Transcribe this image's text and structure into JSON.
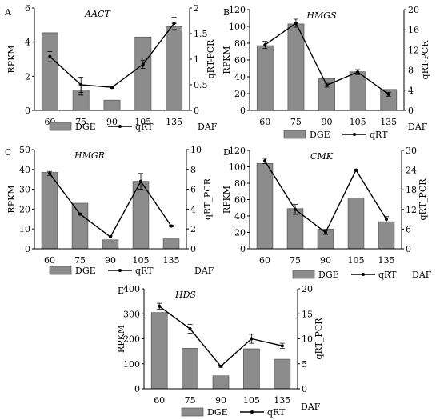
{
  "chart_data": [
    {
      "panel_label": "A",
      "type": "bar",
      "title": "AACT",
      "categories": [
        "60",
        "75",
        "90",
        "105",
        "135"
      ],
      "xlabel": "DAF",
      "ylabel": "RPKM",
      "y2label": "qRT-PCR",
      "ylim": [
        0,
        6
      ],
      "yticks": [
        "0",
        "2",
        "4",
        "6"
      ],
      "y2lim": [
        0,
        2
      ],
      "y2ticks": [
        "0",
        "0.5",
        "1",
        "1.5",
        "2"
      ],
      "series": [
        {
          "name": "DGE",
          "kind": "bar",
          "axis": "left",
          "values": [
            4.55,
            1.2,
            0.6,
            4.3,
            4.9
          ],
          "errors": [
            0,
            0.3,
            0,
            0,
            0.2
          ]
        },
        {
          "name": "qRT",
          "kind": "line",
          "axis": "right",
          "values": [
            1.05,
            0.5,
            0.45,
            0.9,
            1.7
          ],
          "errors": [
            0.1,
            0.15,
            0.02,
            0.08,
            0.12
          ]
        }
      ]
    },
    {
      "panel_label": "B",
      "type": "bar",
      "title": "HMGS",
      "categories": [
        "60",
        "75",
        "90",
        "105",
        "135"
      ],
      "xlabel": "DAF",
      "ylabel": "RPKM",
      "y2label": "qRT-PCR",
      "ylim": [
        0,
        120
      ],
      "yticks": [
        "0",
        "20",
        "40",
        "60",
        "80",
        "100",
        "120"
      ],
      "y2lim": [
        0,
        20
      ],
      "y2ticks": [
        "0",
        "4",
        "8",
        "12",
        "16",
        "20"
      ],
      "series": [
        {
          "name": "DGE",
          "kind": "bar",
          "axis": "left",
          "values": [
            77,
            103,
            38,
            46,
            25
          ],
          "errors": [
            0,
            0,
            0,
            0,
            0
          ]
        },
        {
          "name": "qRT",
          "kind": "line",
          "axis": "right",
          "values": [
            13,
            17.3,
            5,
            7.6,
            3.2
          ],
          "errors": [
            0.7,
            0.8,
            0.4,
            0.5,
            0.4
          ]
        }
      ]
    },
    {
      "panel_label": "C",
      "type": "bar",
      "title": "HMGR",
      "categories": [
        "60",
        "75",
        "90",
        "105",
        "135"
      ],
      "xlabel": "DAF",
      "ylabel": "RPKM",
      "y2label": "qRT_PCR",
      "ylim": [
        0,
        50
      ],
      "yticks": [
        "0",
        "10",
        "20",
        "30",
        "40",
        "50"
      ],
      "y2lim": [
        0,
        10
      ],
      "y2ticks": [
        "0",
        "2",
        "4",
        "6",
        "8",
        "10"
      ],
      "series": [
        {
          "name": "DGE",
          "kind": "bar",
          "axis": "left",
          "values": [
            38.5,
            23,
            4.5,
            34,
            5
          ],
          "errors": [
            0,
            0,
            0,
            0,
            0
          ]
        },
        {
          "name": "qRT",
          "kind": "line",
          "axis": "right",
          "values": [
            7.6,
            3.5,
            1.2,
            6.8,
            2.3
          ],
          "errors": [
            0.2,
            0.1,
            0.1,
            0.8,
            0.1
          ]
        }
      ]
    },
    {
      "panel_label": "D",
      "type": "bar",
      "title": "CMK",
      "categories": [
        "60",
        "75",
        "90",
        "105",
        "135"
      ],
      "xlabel": "DAF",
      "ylabel": "RPKM",
      "y2label": "qRT_PCR",
      "ylim": [
        0,
        120
      ],
      "yticks": [
        "0",
        "20",
        "40",
        "60",
        "80",
        "100",
        "120"
      ],
      "y2lim": [
        0,
        30
      ],
      "y2ticks": [
        "0",
        "6",
        "12",
        "18",
        "24",
        "30"
      ],
      "series": [
        {
          "name": "DGE",
          "kind": "bar",
          "axis": "left",
          "values": [
            104,
            49,
            24,
            62,
            33
          ],
          "errors": [
            0,
            0,
            0,
            0,
            0
          ]
        },
        {
          "name": "qRT",
          "kind": "line",
          "axis": "right",
          "values": [
            26.8,
            12,
            5,
            24,
            9
          ],
          "errors": [
            0.8,
            1.5,
            0.6,
            0.3,
            0.8
          ]
        }
      ]
    },
    {
      "panel_label": "E",
      "type": "bar",
      "title": "HDS",
      "categories": [
        "60",
        "75",
        "90",
        "105",
        "135"
      ],
      "xlabel": "DAF",
      "ylabel": "RPKM",
      "y2label": "qRT_PCR",
      "ylim": [
        0,
        400
      ],
      "yticks": [
        "0",
        "100",
        "200",
        "300",
        "400"
      ],
      "y2lim": [
        0,
        20
      ],
      "y2ticks": [
        "0",
        "5",
        "10",
        "15",
        "20"
      ],
      "series": [
        {
          "name": "DGE",
          "kind": "bar",
          "axis": "left",
          "values": [
            305,
            162,
            52,
            160,
            118
          ],
          "errors": [
            0,
            0,
            0,
            0,
            0
          ]
        },
        {
          "name": "qRT",
          "kind": "line",
          "axis": "right",
          "values": [
            16.5,
            12,
            4.5,
            10,
            8.6
          ],
          "errors": [
            0.6,
            0.9,
            0.2,
            0.9,
            0.5
          ]
        }
      ]
    }
  ],
  "colors": {
    "bar_fill": "#8c8c8c",
    "bar_stroke": "#555555",
    "line": "#000000",
    "axis": "#000000"
  },
  "legend": {
    "bar_label": "DGE",
    "line_label": "qRT"
  }
}
